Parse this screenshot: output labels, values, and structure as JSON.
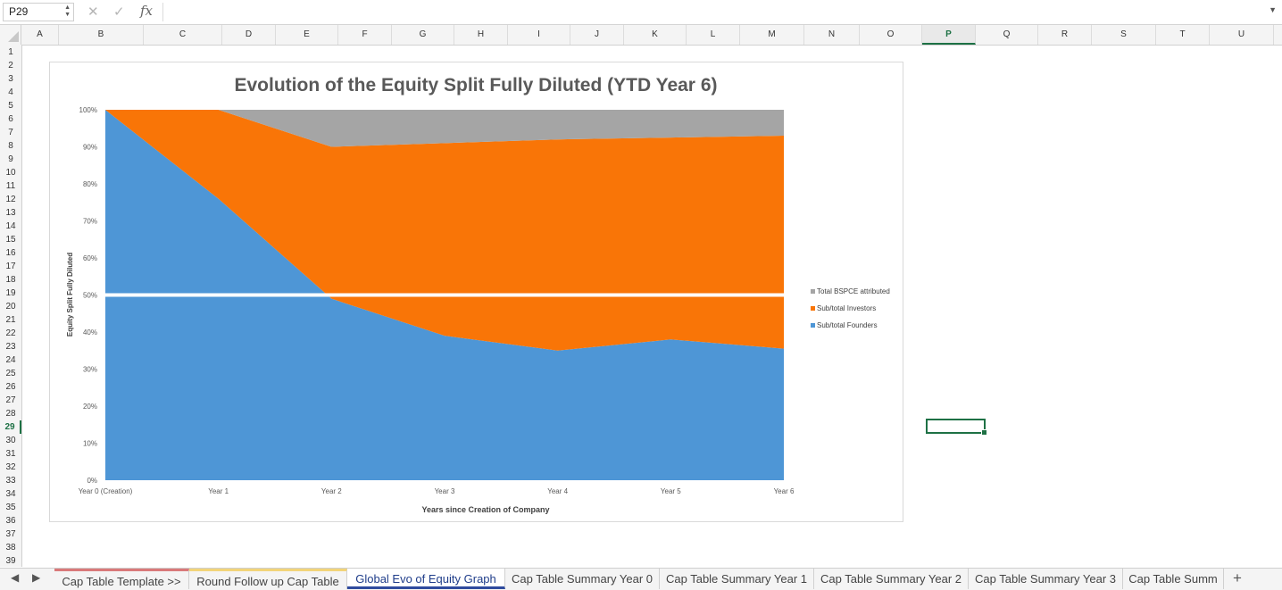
{
  "formula_bar": {
    "name_box": "P29",
    "formula": "",
    "fx_label": "fx",
    "cancel_glyph": "✕",
    "enter_glyph": "✓"
  },
  "columns": [
    "A",
    "B",
    "C",
    "D",
    "E",
    "F",
    "G",
    "H",
    "I",
    "J",
    "K",
    "L",
    "M",
    "N",
    "O",
    "P",
    "Q",
    "R",
    "S",
    "T",
    "U"
  ],
  "active_column": "P",
  "rows": [
    "1",
    "2",
    "3",
    "4",
    "5",
    "6",
    "7",
    "8",
    "9",
    "10",
    "11",
    "12",
    "13",
    "14",
    "15",
    "16",
    "17",
    "18",
    "19",
    "20",
    "21",
    "22",
    "23",
    "24",
    "25",
    "26",
    "27",
    "28",
    "29",
    "30",
    "31",
    "32",
    "33",
    "34",
    "35",
    "36",
    "37",
    "38",
    "39"
  ],
  "active_row": "29",
  "chart_data": {
    "type": "area",
    "stacked": "percent",
    "title": "Evolution of the Equity Split Fully Diluted (YTD Year 6)",
    "xlabel": "Years since Creation of Company",
    "ylabel": "Equity Split Fully Diluted",
    "categories": [
      "Year 0 (Creation)",
      "Year 1",
      "Year 2",
      "Year 3",
      "Year 4",
      "Year 5",
      "Year 6"
    ],
    "yticks": [
      "0%",
      "10%",
      "20%",
      "30%",
      "40%",
      "50%",
      "60%",
      "70%",
      "80%",
      "90%",
      "100%"
    ],
    "ylim": [
      0,
      1
    ],
    "legend_position": "right",
    "series": [
      {
        "name": "Sub/total Founders",
        "color": "#4e96d6",
        "values": [
          1.0,
          0.76,
          0.49,
          0.39,
          0.35,
          0.38,
          0.355
        ]
      },
      {
        "name": "Sub/total Investors",
        "color": "#f97507",
        "values": [
          0.0,
          0.24,
          0.41,
          0.52,
          0.57,
          0.545,
          0.575
        ]
      },
      {
        "name": "Total BSPCE attributed",
        "color": "#a5a5a5",
        "values": [
          0.0,
          0.0,
          0.1,
          0.09,
          0.08,
          0.075,
          0.07
        ]
      }
    ],
    "legend_order": [
      "Total BSPCE attributed",
      "Sub/total Investors",
      "Sub/total Founders"
    ],
    "reference_line": {
      "y": 0.5,
      "color": "#ffffff"
    }
  },
  "sheet_tabs": [
    {
      "label": "Cap Table Template >>",
      "accent": "#d9797a"
    },
    {
      "label": "Round Follow up Cap Table",
      "accent": "#f2d479"
    },
    {
      "label": "Global Evo of Equity Graph",
      "accent": ""
    },
    {
      "label": "Cap Table Summary Year 0",
      "accent": ""
    },
    {
      "label": "Cap Table Summary Year 1",
      "accent": ""
    },
    {
      "label": "Cap Table Summary Year 2",
      "accent": ""
    },
    {
      "label": "Cap Table Summary Year 3",
      "accent": ""
    },
    {
      "label": "Cap Table Summ",
      "accent": ""
    }
  ],
  "active_tab": "Global Evo of Equity Graph",
  "add_sheet_label": "+",
  "icons": {
    "prev": "left-arrow-icon",
    "next": "right-arrow-icon"
  }
}
